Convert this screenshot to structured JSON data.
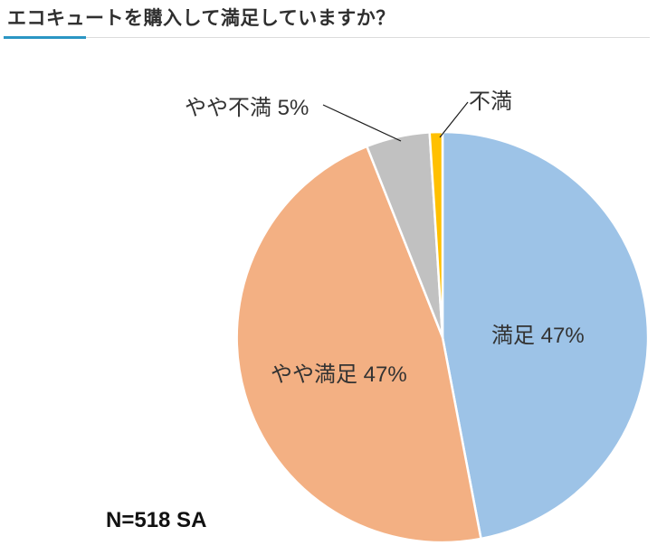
{
  "page": {
    "title": "エコキュートを購入して満足していますか？",
    "accent_color": "#2b96c4"
  },
  "chart_data": {
    "type": "pie",
    "title": "エコキュートを購入して満足していますか？",
    "note": "N=518 SA",
    "sample_size": 518,
    "start_angle_deg": 0,
    "direction": "clockwise",
    "legend_position": "none",
    "slices": [
      {
        "label": "満足",
        "value": 47,
        "display": "満足 47%",
        "color": "#9DC3E7",
        "label_placement": "inside"
      },
      {
        "label": "やや満足",
        "value": 47,
        "display": "やや満足 47%",
        "color": "#F3B083",
        "label_placement": "inside"
      },
      {
        "label": "やや不満",
        "value": 5,
        "display": "やや不満 5%",
        "color": "#C1C1C1",
        "label_placement": "outside"
      },
      {
        "label": "不満",
        "value": 1,
        "display": "不満",
        "color": "#FFC000",
        "label_placement": "outside"
      }
    ]
  }
}
